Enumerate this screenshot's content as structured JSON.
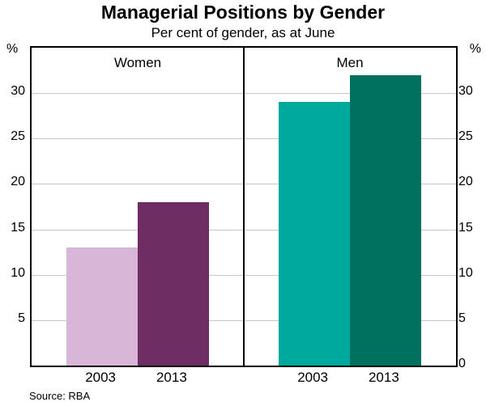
{
  "title": "Managerial Positions by Gender",
  "subtitle": "Per cent of gender, as at June",
  "unit_left": "%",
  "unit_right": "%",
  "source": "Source: RBA",
  "chart_data": {
    "type": "bar",
    "title": "Managerial Positions by Gender",
    "subtitle": "Per cent of gender, as at June",
    "ylabel": "%",
    "ylim": [
      0,
      35
    ],
    "ytick_step": 5,
    "grid": true,
    "yticks_left": [
      30,
      25,
      20,
      15,
      10,
      5
    ],
    "yticks_right": [
      30,
      25,
      20,
      15,
      10,
      5,
      0
    ],
    "panels": [
      {
        "label": "Women",
        "categories": [
          "2003",
          "2013"
        ],
        "values": [
          13,
          18
        ],
        "colors": [
          "#d7b6d7",
          "#6e2d63"
        ]
      },
      {
        "label": "Men",
        "categories": [
          "2003",
          "2013"
        ],
        "values": [
          29,
          32
        ],
        "colors": [
          "#00a99d",
          "#00705f"
        ]
      }
    ]
  }
}
